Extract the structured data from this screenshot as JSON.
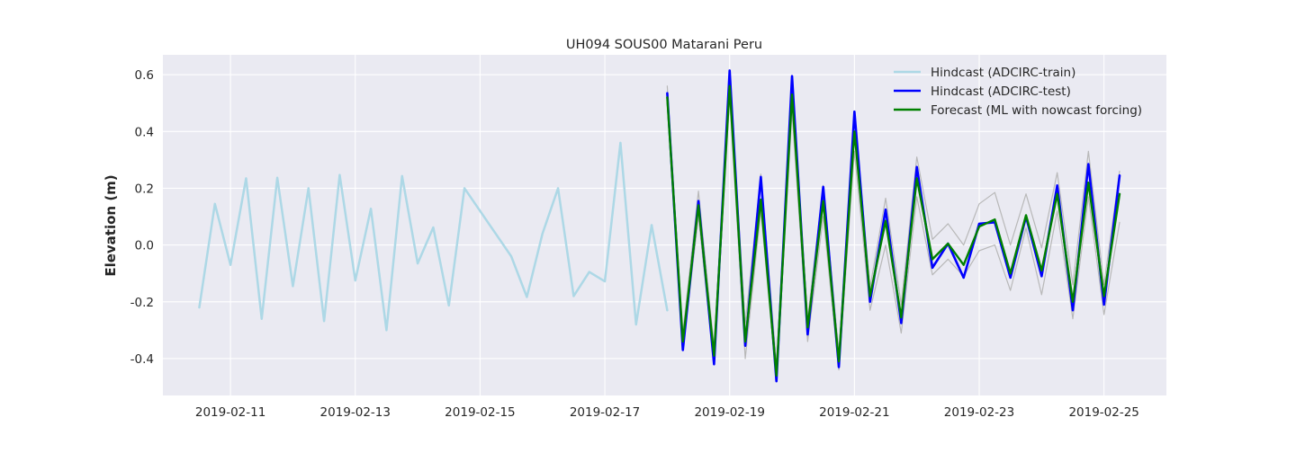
{
  "chart_data": {
    "type": "line",
    "title": "UH094 SOUS00 Matarani Peru",
    "xlabel": "",
    "ylabel": "Elevation (m)",
    "xlim": [
      "2019-02-09T22:00",
      "2019-02-26T00:00"
    ],
    "ylim": [
      -0.53,
      0.67
    ],
    "grid": true,
    "legend_position": "top-right",
    "x_ticks": [
      "2019-02-11",
      "2019-02-13",
      "2019-02-15",
      "2019-02-17",
      "2019-02-19",
      "2019-02-21",
      "2019-02-23",
      "2019-02-25"
    ],
    "y_ticks": [
      -0.4,
      -0.2,
      0.0,
      0.2,
      0.4,
      0.6
    ],
    "series": [
      {
        "name": "Hindcast (ADCIRC-train)",
        "color": "#add8e6",
        "in_legend": true,
        "x": [
          "2019-02-10T12:00",
          "2019-02-10T18:00",
          "2019-02-11T00:00",
          "2019-02-11T06:00",
          "2019-02-11T12:00",
          "2019-02-11T18:00",
          "2019-02-12T00:00",
          "2019-02-12T06:00",
          "2019-02-12T12:00",
          "2019-02-12T18:00",
          "2019-02-13T00:00",
          "2019-02-13T06:00",
          "2019-02-13T12:00",
          "2019-02-13T18:00",
          "2019-02-14T00:00",
          "2019-02-14T06:00",
          "2019-02-14T12:00",
          "2019-02-14T18:00",
          "2019-02-15T00:00",
          "2019-02-15T06:00",
          "2019-02-15T12:00",
          "2019-02-15T18:00",
          "2019-02-16T00:00",
          "2019-02-16T06:00",
          "2019-02-16T12:00",
          "2019-02-16T18:00",
          "2019-02-17T00:00",
          "2019-02-17T06:00",
          "2019-02-17T12:00",
          "2019-02-17T18:00"
        ],
        "y": [
          -0.22,
          0.145,
          -0.07,
          0.235,
          -0.26,
          0.237,
          -0.145,
          0.2,
          -0.268,
          0.247,
          -0.125,
          0.128,
          -0.3,
          0.243,
          -0.065,
          0.062,
          -0.213,
          0.2,
          0.12,
          0.04,
          -0.04,
          -0.183,
          0.04,
          0.2,
          -0.18,
          -0.095,
          -0.128,
          0.36,
          -0.28,
          0.07
        ]
      },
      {
        "name": "Hindcast (ADCIRC-train) (last segment)",
        "color": "#add8e6",
        "in_legend": false,
        "x": [
          "2019-02-17T18:00",
          "2019-02-18T00:00"
        ],
        "y": [
          0.07,
          -0.23
        ]
      },
      {
        "name": "Forecast envelope upper",
        "color": "#b8b8b8",
        "in_legend": false,
        "x": [
          "2019-02-18T00:00",
          "2019-02-18T06:00",
          "2019-02-18T12:00",
          "2019-02-18T18:00",
          "2019-02-19T00:00",
          "2019-02-19T06:00",
          "2019-02-19T12:00",
          "2019-02-19T18:00",
          "2019-02-20T00:00",
          "2019-02-20T06:00",
          "2019-02-20T12:00",
          "2019-02-20T18:00",
          "2019-02-21T00:00",
          "2019-02-21T06:00",
          "2019-02-21T12:00",
          "2019-02-21T18:00",
          "2019-02-22T00:00",
          "2019-02-22T06:00",
          "2019-02-22T12:00",
          "2019-02-22T18:00",
          "2019-02-23T00:00",
          "2019-02-23T06:00",
          "2019-02-23T12:00",
          "2019-02-23T18:00",
          "2019-02-24T00:00",
          "2019-02-24T06:00",
          "2019-02-24T12:00",
          "2019-02-24T18:00",
          "2019-02-25T00:00",
          "2019-02-25T06:00"
        ],
        "y": [
          0.56,
          -0.31,
          0.19,
          -0.36,
          0.6,
          -0.28,
          0.25,
          -0.42,
          0.58,
          -0.26,
          0.21,
          -0.38,
          0.46,
          -0.15,
          0.165,
          -0.21,
          0.31,
          0.02,
          0.075,
          0.0,
          0.145,
          0.185,
          0.0,
          0.18,
          -0.01,
          0.255,
          -0.14,
          0.33,
          -0.14,
          0.26
        ]
      },
      {
        "name": "Forecast envelope lower",
        "color": "#b8b8b8",
        "in_legend": false,
        "x": [
          "2019-02-18T00:00",
          "2019-02-18T06:00",
          "2019-02-18T12:00",
          "2019-02-18T18:00",
          "2019-02-19T00:00",
          "2019-02-19T06:00",
          "2019-02-19T12:00",
          "2019-02-19T18:00",
          "2019-02-20T00:00",
          "2019-02-20T06:00",
          "2019-02-20T12:00",
          "2019-02-20T18:00",
          "2019-02-21T00:00",
          "2019-02-21T06:00",
          "2019-02-21T12:00",
          "2019-02-21T18:00",
          "2019-02-22T00:00",
          "2019-02-22T06:00",
          "2019-02-22T12:00",
          "2019-02-22T18:00",
          "2019-02-23T00:00",
          "2019-02-23T06:00",
          "2019-02-23T12:00",
          "2019-02-23T18:00",
          "2019-02-24T00:00",
          "2019-02-24T06:00",
          "2019-02-24T12:00",
          "2019-02-24T18:00",
          "2019-02-25T00:00",
          "2019-02-25T06:00"
        ],
        "y": [
          0.5,
          -0.37,
          0.1,
          -0.42,
          0.52,
          -0.4,
          0.12,
          -0.48,
          0.47,
          -0.34,
          0.1,
          -0.44,
          0.33,
          -0.23,
          0.0,
          -0.31,
          0.17,
          -0.105,
          -0.05,
          -0.11,
          -0.02,
          0.0,
          -0.16,
          0.06,
          -0.175,
          0.12,
          -0.26,
          0.17,
          -0.245,
          0.08
        ]
      },
      {
        "name": "Hindcast (ADCIRC-test)",
        "color": "#0000ff",
        "in_legend": true,
        "x": [
          "2019-02-18T00:00",
          "2019-02-18T06:00",
          "2019-02-18T12:00",
          "2019-02-18T18:00",
          "2019-02-19T00:00",
          "2019-02-19T06:00",
          "2019-02-19T12:00",
          "2019-02-19T18:00",
          "2019-02-20T00:00",
          "2019-02-20T06:00",
          "2019-02-20T12:00",
          "2019-02-20T18:00",
          "2019-02-21T00:00",
          "2019-02-21T06:00",
          "2019-02-21T12:00",
          "2019-02-21T18:00",
          "2019-02-22T00:00",
          "2019-02-22T06:00",
          "2019-02-22T12:00",
          "2019-02-22T18:00",
          "2019-02-23T00:00",
          "2019-02-23T06:00",
          "2019-02-23T12:00",
          "2019-02-23T18:00",
          "2019-02-24T00:00",
          "2019-02-24T06:00",
          "2019-02-24T12:00",
          "2019-02-24T18:00",
          "2019-02-25T00:00",
          "2019-02-25T06:00"
        ],
        "y": [
          0.535,
          -0.37,
          0.155,
          -0.42,
          0.615,
          -0.355,
          0.24,
          -0.48,
          0.595,
          -0.315,
          0.205,
          -0.43,
          0.47,
          -0.2,
          0.125,
          -0.275,
          0.275,
          -0.08,
          0.005,
          -0.115,
          0.075,
          0.08,
          -0.115,
          0.1,
          -0.11,
          0.21,
          -0.23,
          0.285,
          -0.21,
          0.245
        ]
      },
      {
        "name": "Forecast (ML with nowcast forcing)",
        "color": "#008000",
        "in_legend": true,
        "x": [
          "2019-02-18T00:00",
          "2019-02-18T06:00",
          "2019-02-18T12:00",
          "2019-02-18T18:00",
          "2019-02-19T00:00",
          "2019-02-19T06:00",
          "2019-02-19T12:00",
          "2019-02-19T18:00",
          "2019-02-20T00:00",
          "2019-02-20T06:00",
          "2019-02-20T12:00",
          "2019-02-20T18:00",
          "2019-02-21T00:00",
          "2019-02-21T06:00",
          "2019-02-21T12:00",
          "2019-02-21T18:00",
          "2019-02-22T00:00",
          "2019-02-22T06:00",
          "2019-02-22T12:00",
          "2019-02-22T18:00",
          "2019-02-23T00:00",
          "2019-02-23T06:00",
          "2019-02-23T12:00",
          "2019-02-23T18:00",
          "2019-02-24T00:00",
          "2019-02-24T06:00",
          "2019-02-24T12:00",
          "2019-02-24T18:00",
          "2019-02-25T00:00",
          "2019-02-25T06:00"
        ],
        "y": [
          0.52,
          -0.34,
          0.14,
          -0.39,
          0.56,
          -0.34,
          0.16,
          -0.46,
          0.53,
          -0.29,
          0.155,
          -0.41,
          0.4,
          -0.18,
          0.085,
          -0.255,
          0.235,
          -0.05,
          0.005,
          -0.07,
          0.065,
          0.09,
          -0.1,
          0.105,
          -0.09,
          0.18,
          -0.2,
          0.22,
          -0.18,
          0.18
        ]
      }
    ]
  }
}
